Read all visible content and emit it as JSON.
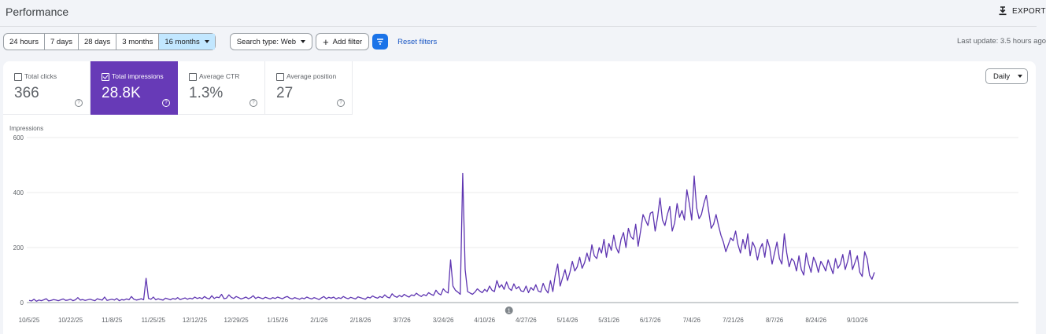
{
  "header": {
    "title": "Performance",
    "export_label": "EXPORT",
    "export_icon": "download-icon"
  },
  "filters": {
    "ranges": [
      "24 hours",
      "7 days",
      "28 days",
      "3 months",
      "16 months"
    ],
    "selected_range": "16 months",
    "search_type": "Search type: Web",
    "add_filter": "Add filter",
    "reset": "Reset filters",
    "last_update": "Last update: 3.5 hours ago"
  },
  "metrics": [
    {
      "label": "Total clicks",
      "value": "366",
      "checked": false
    },
    {
      "label": "Total impressions",
      "value": "28.8K",
      "checked": true
    },
    {
      "label": "Average CTR",
      "value": "1.3%",
      "checked": false
    },
    {
      "label": "Average position",
      "value": "27",
      "checked": false
    }
  ],
  "granularity": "Daily",
  "colors": {
    "impressions": "#5e35b1",
    "accent": "#673ab7",
    "selected_range": "#c2e7ff",
    "link": "#1a57c4"
  },
  "chart_data": {
    "type": "line",
    "ylabel": "Impressions",
    "ylim": [
      0,
      600
    ],
    "yticks": [
      "0",
      "200",
      "400",
      "600"
    ],
    "xticks": [
      "10/5/25",
      "10/22/25",
      "11/8/25",
      "11/25/25",
      "12/12/25",
      "12/29/25",
      "1/15/26",
      "2/1/26",
      "2/18/26",
      "3/7/26",
      "3/24/26",
      "4/10/26",
      "4/27/26",
      "5/14/26",
      "5/31/26",
      "6/17/26",
      "7/4/26",
      "7/21/26",
      "8/7/26",
      "8/24/26",
      "9/10/26"
    ],
    "annotation": "1",
    "annotation_date": "4/20/26",
    "series": [
      {
        "x_start": "10/5/25",
        "step": "1 day",
        "values": [
          8,
          6,
          12,
          5,
          9,
          7,
          10,
          14,
          6,
          8,
          11,
          9,
          7,
          10,
          13,
          8,
          9,
          12,
          7,
          10,
          18,
          9,
          11,
          8,
          10,
          12,
          9,
          7,
          14,
          11,
          9,
          20,
          8,
          10,
          12,
          9,
          15,
          7,
          11,
          9,
          13,
          10,
          22,
          12,
          9,
          11,
          14,
          10,
          88,
          15,
          12,
          20,
          10,
          14,
          11,
          9,
          16,
          13,
          10,
          15,
          12,
          18,
          11,
          14,
          17,
          12,
          16,
          13,
          20,
          15,
          18,
          14,
          22,
          16,
          13,
          25,
          15,
          20,
          18,
          30,
          14,
          16,
          28,
          19,
          15,
          22,
          18,
          13,
          16,
          20,
          14,
          18,
          25,
          15,
          20,
          17,
          14,
          19,
          16,
          13,
          18,
          15,
          20,
          17,
          14,
          19,
          22,
          16,
          13,
          18,
          15,
          12,
          17,
          14,
          20,
          16,
          13,
          18,
          15,
          11,
          17,
          22,
          14,
          19,
          16,
          20,
          13,
          18,
          15,
          22,
          17,
          14,
          19,
          16,
          13,
          21,
          18,
          15,
          12,
          20,
          17,
          24,
          19,
          16,
          22,
          18,
          28,
          20,
          17,
          32,
          23,
          19,
          26,
          21,
          30,
          24,
          20,
          28,
          25,
          34,
          27,
          22,
          29,
          25,
          36,
          30,
          26,
          45,
          33,
          28,
          50,
          40,
          35,
          155,
          60,
          45,
          38,
          30,
          470,
          120,
          40,
          35,
          30,
          38,
          50,
          42,
          36,
          48,
          40,
          60,
          45,
          40,
          80,
          55,
          65,
          48,
          75,
          52,
          44,
          68,
          50,
          58,
          42,
          40,
          60,
          36,
          55,
          45,
          65,
          42,
          38,
          70,
          48,
          35,
          80,
          40,
          100,
          140,
          60,
          90,
          120,
          80,
          110,
          150,
          115,
          130,
          165,
          125,
          145,
          180,
          150,
          210,
          170,
          160,
          200,
          180,
          230,
          165,
          215,
          190,
          245,
          200,
          180,
          230,
          255,
          200,
          270,
          240,
          230,
          285,
          205,
          260,
          320,
          300,
          280,
          325,
          330,
          260,
          310,
          380,
          300,
          280,
          320,
          350,
          260,
          290,
          360,
          310,
          335,
          300,
          410,
          360,
          300,
          460,
          345,
          305,
          320,
          360,
          390,
          330,
          270,
          285,
          320,
          280,
          245,
          220,
          185,
          210,
          235,
          225,
          260,
          210,
          180,
          230,
          195,
          250,
          170,
          220,
          200,
          155,
          195,
          215,
          165,
          230,
          200,
          140,
          180,
          220,
          160,
          140,
          250,
          180,
          130,
          160,
          150,
          115,
          170,
          120,
          100,
          180,
          140,
          110,
          165,
          145,
          110,
          150,
          135,
          115,
          155,
          130,
          105,
          160,
          125,
          140,
          175,
          120,
          150,
          190,
          120,
          145,
          170,
          110,
          95,
          185,
          160,
          100,
          85,
          110
        ]
      }
    ]
  }
}
